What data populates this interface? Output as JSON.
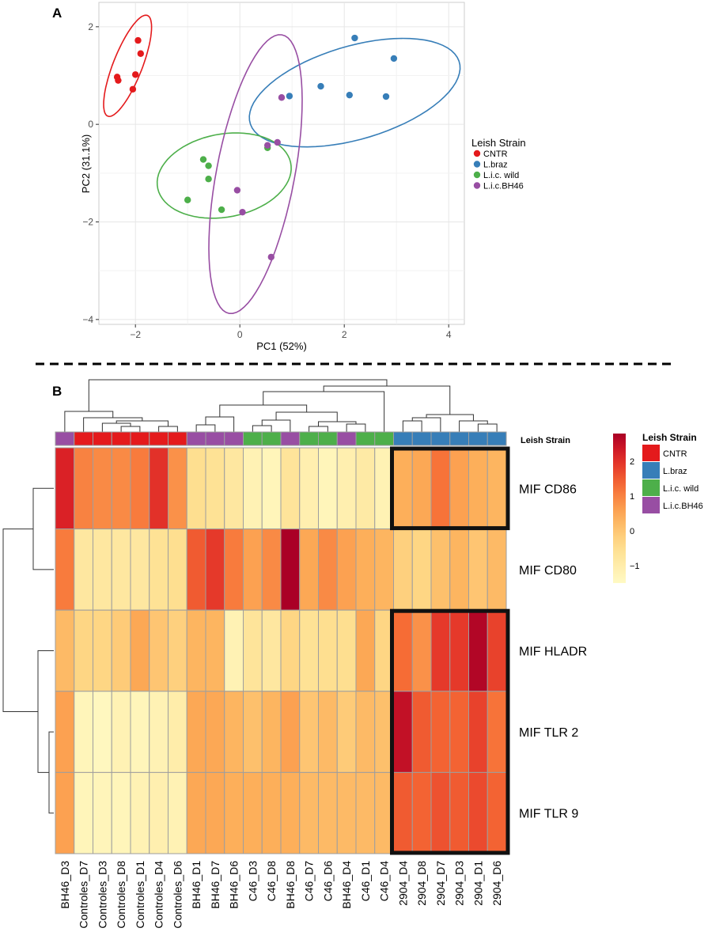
{
  "panel_a_letter": "A",
  "panel_b_letter": "B",
  "colors": {
    "CNTR": "#e41a1c",
    "L.braz": "#377eb8",
    "L.i.c. wild": "#4daf4a",
    "L.i.c.BH46": "#984ea3"
  },
  "chart_data": [
    {
      "type": "scatter",
      "title": "",
      "xlabel": "PC1 (52%)",
      "ylabel": "PC2 (31.1%)",
      "xlim": [
        -2.7,
        4.3
      ],
      "ylim": [
        -4.1,
        2.5
      ],
      "xticks": [
        -2,
        0,
        2,
        4
      ],
      "xtick_labels": [
        "−2",
        "0",
        "2",
        "4"
      ],
      "yticks": [
        -4,
        -2,
        0,
        2
      ],
      "ytick_labels": [
        "−4",
        "−2",
        "0",
        "2"
      ],
      "grid": true,
      "legend": {
        "title": "Leish Strain",
        "position": "right",
        "entries": [
          "CNTR",
          "L.braz",
          "L.i.c. wild",
          "L.i.c.BH46"
        ]
      },
      "series": [
        {
          "name": "CNTR",
          "color": "#e41a1c",
          "points": [
            [
              -1.95,
              1.72
            ],
            [
              -1.9,
              1.45
            ],
            [
              -2.35,
              0.97
            ],
            [
              -2.0,
              1.02
            ],
            [
              -2.33,
              0.9
            ],
            [
              -2.05,
              0.72
            ]
          ],
          "ellipse": {
            "center": [
              -2.15,
              1.2
            ],
            "semi_axes": [
              1.1,
              0.28
            ],
            "angle_deg": 70
          }
        },
        {
          "name": "L.braz",
          "color": "#377eb8",
          "points": [
            [
              2.2,
              1.77
            ],
            [
              2.95,
              1.35
            ],
            [
              1.55,
              0.78
            ],
            [
              2.1,
              0.6
            ],
            [
              2.8,
              0.57
            ],
            [
              0.95,
              0.58
            ]
          ],
          "ellipse": {
            "center": [
              2.2,
              0.65
            ],
            "semi_axes": [
              2.1,
              0.95
            ],
            "angle_deg": 18
          }
        },
        {
          "name": "L.i.c. wild",
          "color": "#4daf4a",
          "points": [
            [
              -0.7,
              -0.72
            ],
            [
              -0.6,
              -0.85
            ],
            [
              -0.6,
              -1.12
            ],
            [
              0.53,
              -0.48
            ],
            [
              -1.0,
              -1.55
            ],
            [
              -0.35,
              -1.75
            ]
          ],
          "ellipse": {
            "center": [
              -0.3,
              -1.05
            ],
            "semi_axes": [
              1.3,
              0.85
            ],
            "angle_deg": 12
          }
        },
        {
          "name": "L.i.c.BH46",
          "color": "#984ea3",
          "points": [
            [
              0.8,
              0.55
            ],
            [
              0.72,
              -0.37
            ],
            [
              0.53,
              -0.43
            ],
            [
              -0.05,
              -1.35
            ],
            [
              0.05,
              -1.8
            ],
            [
              0.6,
              -2.72
            ]
          ],
          "ellipse": {
            "center": [
              0.3,
              -1.02
            ],
            "semi_axes": [
              2.9,
              0.75
            ],
            "angle_deg": 80
          }
        }
      ]
    },
    {
      "type": "heatmap",
      "title": "",
      "rows": [
        "MIF CD86",
        "MIF CD80",
        "MIF HLADR",
        "MIF TLR 2",
        "MIF TLR 9"
      ],
      "columns": [
        "BH46_D3",
        "Controles_D7",
        "Controles_D3",
        "Controles_D8",
        "Controles_D1",
        "Controles_D4",
        "Controles_D6",
        "BH46_D1",
        "BH46_D7",
        "BH46_D6",
        "C46_D3",
        "C46_D8",
        "BH46_D8",
        "C46_D7",
        "C46_D6",
        "BH46_D4",
        "C46_D1",
        "C46_D4",
        "2904_D4",
        "2904_D8",
        "2904_D7",
        "2904_D3",
        "2904_D1",
        "2904_D6"
      ],
      "column_strain": [
        "L.i.c.BH46",
        "CNTR",
        "CNTR",
        "CNTR",
        "CNTR",
        "CNTR",
        "CNTR",
        "L.i.c.BH46",
        "L.i.c.BH46",
        "L.i.c.BH46",
        "L.i.c. wild",
        "L.i.c. wild",
        "L.i.c.BH46",
        "L.i.c. wild",
        "L.i.c. wild",
        "L.i.c.BH46",
        "L.i.c. wild",
        "L.i.c. wild",
        "L.braz",
        "L.braz",
        "L.braz",
        "L.braz",
        "L.braz",
        "L.braz"
      ],
      "values": [
        [
          2.2,
          1.0,
          0.9,
          0.9,
          1.1,
          2.0,
          0.8,
          -0.5,
          -0.6,
          -0.8,
          -1.2,
          -1.3,
          -0.7,
          -1.1,
          -1.3,
          -1.1,
          -0.9,
          -1.2,
          0.4,
          0.5,
          1.2,
          0.6,
          0.4,
          0.3
        ],
        [
          1.1,
          -0.8,
          -0.8,
          -0.8,
          -0.8,
          -0.6,
          -0.5,
          1.5,
          1.9,
          1.1,
          0.6,
          0.9,
          2.8,
          0.5,
          0.9,
          0.6,
          0.4,
          0.3,
          -0.2,
          -0.3,
          0.1,
          0.3,
          0.0,
          0.2
        ],
        [
          0.2,
          -0.3,
          -0.3,
          -0.1,
          0.5,
          0.0,
          -0.2,
          0.3,
          0.3,
          -1.2,
          -0.7,
          -0.8,
          -0.3,
          -0.6,
          -0.5,
          -0.5,
          0.5,
          -0.3,
          1.3,
          0.8,
          1.9,
          1.9,
          2.7,
          1.8
        ],
        [
          0.6,
          -1.3,
          -1.4,
          -1.2,
          -1.3,
          -1.2,
          -1.0,
          0.5,
          0.5,
          0.3,
          0.1,
          0.3,
          0.6,
          0.0,
          0.2,
          -0.1,
          0.2,
          0.1,
          2.5,
          1.5,
          1.4,
          1.4,
          1.8,
          1.2
        ],
        [
          0.6,
          -1.3,
          -1.3,
          -1.3,
          -1.2,
          -1.1,
          -1.2,
          0.5,
          0.5,
          0.4,
          0.4,
          0.4,
          0.4,
          0.2,
          0.2,
          0.2,
          0.2,
          0.2,
          1.5,
          1.4,
          1.6,
          1.5,
          1.7,
          1.4
        ]
      ],
      "color_scale": {
        "min": -1.5,
        "max": 2.8,
        "ticks": [
          2,
          1,
          0,
          -1
        ],
        "tick_labels": [
          "2",
          "1",
          "0",
          "−1"
        ]
      },
      "strain_bar_label": "Leish Strain",
      "legend": {
        "title": "Leish Strain",
        "entries": [
          "CNTR",
          "L.braz",
          "L.i.c. wild",
          "L.i.c.BH46"
        ]
      },
      "highlight_boxes": [
        {
          "rows": [
            "MIF CD86"
          ],
          "columns_from": "2904_D4",
          "columns_to": "2904_D6"
        },
        {
          "rows": [
            "MIF HLADR",
            "MIF TLR 2",
            "MIF TLR 9"
          ],
          "columns_from": "2904_D4",
          "columns_to": "2904_D6"
        }
      ]
    }
  ]
}
